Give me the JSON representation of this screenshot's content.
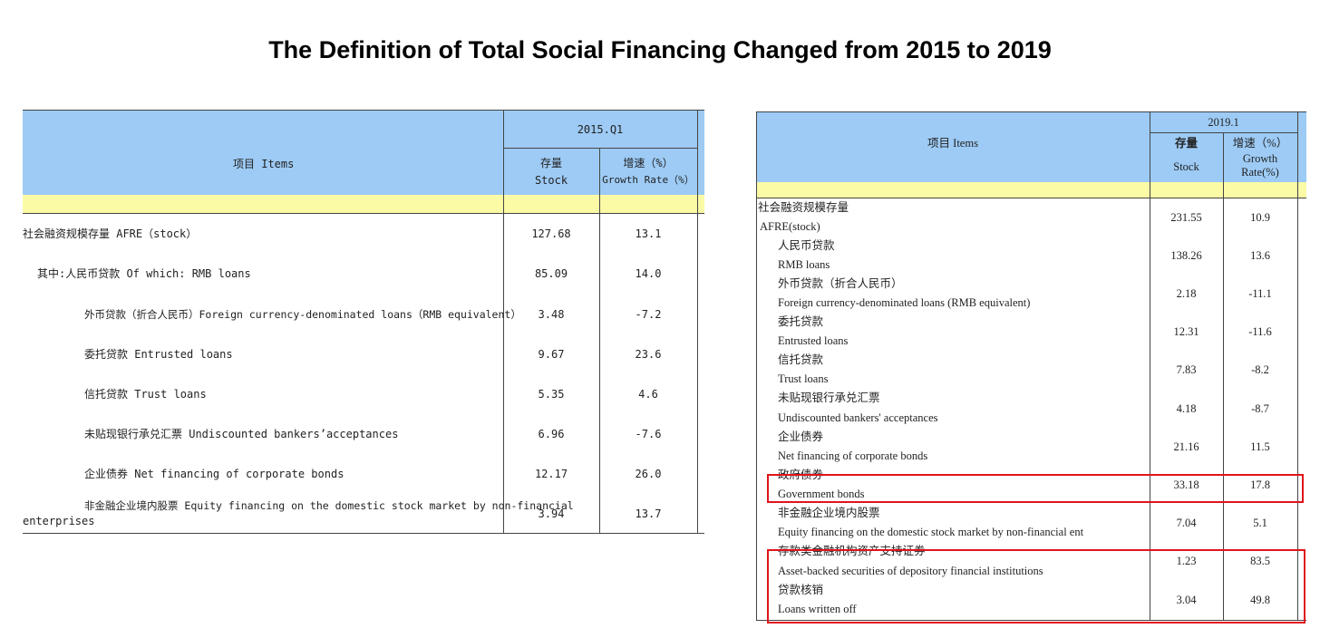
{
  "title": "The Definition of Total Social Financing Changed from 2015 to 2019",
  "left_table": {
    "period": "2015.Q1",
    "items_header": "项目    Items",
    "stock_header_cn": "存量",
    "stock_header_en": "Stock",
    "growth_header_cn": "增速（%）",
    "growth_header_en": "Growth Rate（%）",
    "rows": [
      {
        "label": "社会融资规模存量 AFRE（stock）",
        "stock": "127.68",
        "growth": "13.1"
      },
      {
        "label": "其中:人民币贷款 Of which: RMB loans",
        "stock": "85.09",
        "growth": "14.0"
      },
      {
        "label": "外币贷款（折合人民币）Foreign currency-denominated loans（RMB equivalent）",
        "stock": "3.48",
        "growth": "-7.2"
      },
      {
        "label": "委托贷款 Entrusted loans",
        "stock": "9.67",
        "growth": "23.6"
      },
      {
        "label": "信托贷款 Trust loans",
        "stock": "5.35",
        "growth": "4.6"
      },
      {
        "label": "未贴现银行承兑汇票 Undiscounted bankers’acceptances",
        "stock": "6.96",
        "growth": "-7.6"
      },
      {
        "label": "企业债券 Net financing of corporate bonds",
        "stock": "12.17",
        "growth": "26.0"
      },
      {
        "label": "非金融企业境内股票    Equity financing on the domestic stock market by non-financial",
        "label2": "enterprises",
        "stock": "3.94",
        "growth": "13.7"
      }
    ]
  },
  "right_table": {
    "period": "2019.1",
    "items_header": "项目  Items",
    "stock_header_cn": "存量",
    "stock_header_en": "Stock",
    "growth_header_cn": "增速（%）",
    "growth_header_en_1": "Growth",
    "growth_header_en_2": "Rate(%)",
    "rows": [
      {
        "cn": "社会融资规模存量",
        "en": "AFRE(stock)",
        "stock": "231.55",
        "growth": "10.9"
      },
      {
        "cn": "人民币贷款",
        "en": "RMB loans",
        "stock": "138.26",
        "growth": "13.6"
      },
      {
        "cn": "外币贷款（折合人民币）",
        "en": "Foreign currency-denominated loans (RMB equivalent)",
        "stock": "2.18",
        "growth": "-11.1"
      },
      {
        "cn": "委托贷款",
        "en": "Entrusted loans",
        "stock": "12.31",
        "growth": "-11.6"
      },
      {
        "cn": "信托贷款",
        "en": "Trust loans",
        "stock": "7.83",
        "growth": "-8.2"
      },
      {
        "cn": "未贴现银行承兑汇票",
        "en": "Undiscounted bankers' acceptances",
        "stock": "4.18",
        "growth": "-8.7"
      },
      {
        "cn": "企业债券",
        "en": "Net financing of corporate bonds",
        "stock": "21.16",
        "growth": "11.5"
      },
      {
        "cn": "政府债券",
        "en": "Government bonds",
        "stock": "33.18",
        "growth": "17.8"
      },
      {
        "cn": "非金融企业境内股票",
        "en": "Equity financing on the domestic stock market by non-financial ent",
        "stock": "7.04",
        "growth": "5.1"
      },
      {
        "cn": "存款类金融机构资产支持证券",
        "en": "Asset-backed securities of depository financial institutions",
        "stock": "1.23",
        "growth": "83.5"
      },
      {
        "cn": "贷款核销",
        "en": "Loans written off",
        "stock": "3.04",
        "growth": "49.8"
      }
    ]
  },
  "highlight_color": "#e0141b",
  "header_blue": "#9dcbf5",
  "header_yellow": "#fbfba6"
}
